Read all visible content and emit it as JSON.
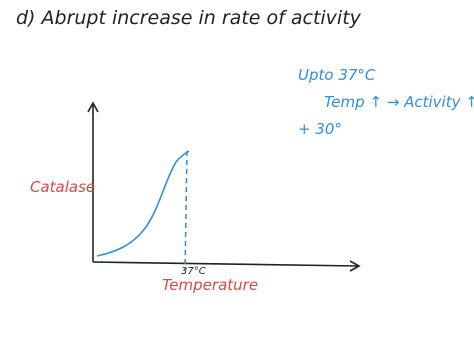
{
  "heading": "d) Abrupt increase in rate of activity",
  "notes": [
    "Upto 37°C",
    "Temp ↑ → Activity ↑",
    "+ 30°"
  ],
  "y_axis_label": "Catalase",
  "x_mark_label": "37°C",
  "x_axis_label": "Temperature"
}
